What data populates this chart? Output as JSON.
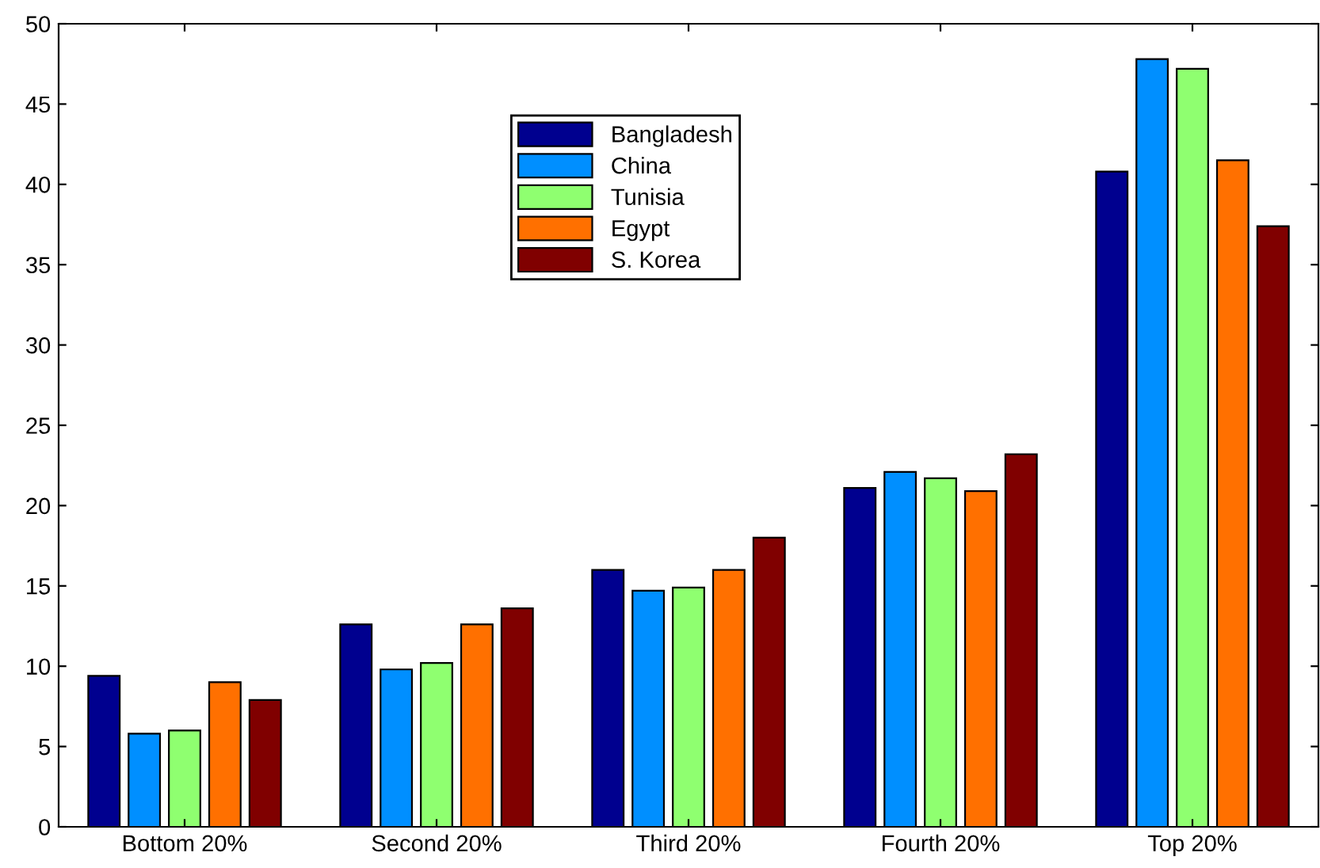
{
  "chart_data": {
    "type": "bar",
    "categories": [
      "Bottom 20%",
      "Second 20%",
      "Third 20%",
      "Fourth 20%",
      "Top 20%"
    ],
    "series": [
      {
        "name": "Bangladesh",
        "color": "#00008f",
        "values": [
          9.4,
          12.6,
          16.0,
          21.1,
          40.8
        ]
      },
      {
        "name": "China",
        "color": "#008fff",
        "values": [
          5.8,
          9.8,
          14.7,
          22.1,
          47.8
        ]
      },
      {
        "name": "Tunisia",
        "color": "#8fff70",
        "values": [
          6.0,
          10.2,
          14.9,
          21.7,
          47.2
        ]
      },
      {
        "name": "Egypt",
        "color": "#ff7000",
        "values": [
          9.0,
          12.6,
          16.0,
          20.9,
          41.5
        ]
      },
      {
        "name": "S. Korea",
        "color": "#800000",
        "values": [
          7.9,
          13.6,
          18.0,
          23.2,
          37.4
        ]
      }
    ],
    "ylim": [
      0,
      50
    ],
    "yticks": [
      0,
      5,
      10,
      15,
      20,
      25,
      30,
      35,
      40,
      45,
      50
    ],
    "grid": false,
    "legend": "top center"
  }
}
